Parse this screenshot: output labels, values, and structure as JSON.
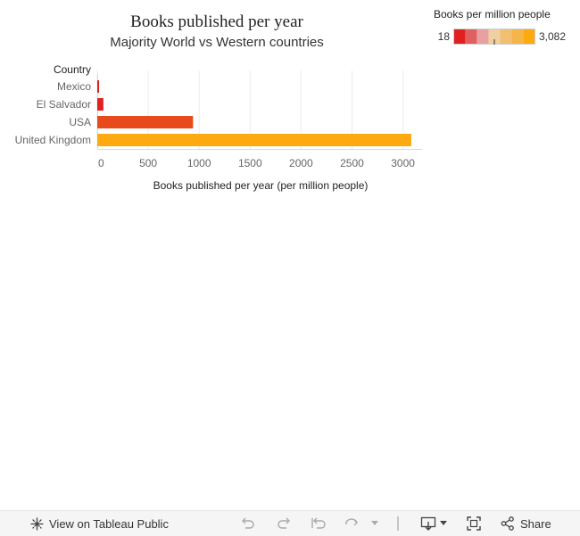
{
  "chart_data": {
    "type": "bar",
    "orientation": "horizontal",
    "title": "Books published per year",
    "subtitle": "Majority World vs Western countries",
    "category_header": "Country",
    "xlabel": "Books published per year (per million people)",
    "categories": [
      "Mexico",
      "El Salvador",
      "USA",
      "United Kingdom"
    ],
    "values": [
      18,
      60,
      940,
      3082
    ],
    "xlim": [
      0,
      3100
    ],
    "xticks": [
      0,
      500,
      1000,
      1500,
      2000,
      2500,
      3000
    ],
    "grid": true,
    "legend": {
      "title": "Books per million people",
      "min_label": "18",
      "max_label": "3,082",
      "min": 18,
      "max": 3082,
      "placement": "top-right",
      "colors": [
        "#e02020",
        "#e06060",
        "#e8a0a0",
        "#f0d0a0",
        "#f0c070",
        "#f5b54a",
        "#fcaa10"
      ]
    }
  },
  "toolbar": {
    "view_label": "View on Tableau Public",
    "share_label": "Share"
  }
}
